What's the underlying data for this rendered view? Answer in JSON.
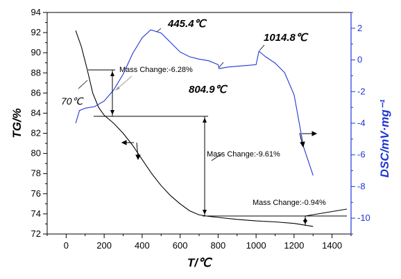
{
  "chart_data": {
    "type": "line",
    "xlabel": "T/℃",
    "ylabel_left": "TG/%",
    "ylabel_right": "DSC/mV·mg⁻¹",
    "xlim": [
      -100,
      1500
    ],
    "ylim_left": [
      72,
      94
    ],
    "ylim_right": [
      -11,
      3
    ],
    "x_ticks": [
      0,
      200,
      400,
      600,
      800,
      1000,
      1200,
      1400
    ],
    "y_ticks_left": [
      72,
      74,
      76,
      78,
      80,
      82,
      84,
      86,
      88,
      90,
      92,
      94
    ],
    "y_ticks_right": [
      -10,
      -8,
      -6,
      -4,
      -2,
      0,
      2
    ],
    "grid": false,
    "legend": "none",
    "series": [
      {
        "axis": "left",
        "color": "#000000",
        "x": [
          50,
          80,
          110,
          140,
          170,
          200,
          250,
          300,
          350,
          400,
          450,
          500,
          550,
          600,
          650,
          700,
          750,
          800,
          900,
          1000,
          1100,
          1200,
          1300
        ],
        "y": [
          92.2,
          90.6,
          88.4,
          86.0,
          84.6,
          83.8,
          83.0,
          82.0,
          80.8,
          79.4,
          78.0,
          76.8,
          75.8,
          75.0,
          74.3,
          73.9,
          73.75,
          73.65,
          73.45,
          73.3,
          73.2,
          73.05,
          72.75
        ]
      },
      {
        "axis": "right",
        "color": "#1f35d6",
        "x": [
          50,
          70,
          100,
          150,
          200,
          250,
          300,
          350,
          400,
          445.4,
          500,
          550,
          600,
          650,
          700,
          750,
          800,
          804.9,
          850,
          900,
          950,
          1000,
          1014.8,
          1050,
          1100,
          1150,
          1200,
          1250,
          1300
        ],
        "y": [
          -4.0,
          -3.2,
          -3.05,
          -2.95,
          -2.6,
          -1.9,
          -0.9,
          0.4,
          1.4,
          1.9,
          1.7,
          1.1,
          0.5,
          0.2,
          0.05,
          -0.05,
          -0.3,
          -0.55,
          -0.45,
          -0.4,
          -0.35,
          -0.3,
          0.55,
          0.2,
          -0.2,
          -0.8,
          -2.2,
          -5.5,
          -7.3
        ]
      }
    ],
    "annotations": {
      "peak1": "445.4℃",
      "peak2": "804.9℃",
      "peak3": "1014.8℃",
      "start": "70℃",
      "mass1": "Mass Change:-6.28%",
      "mass2": "Mass Change:-9.61%",
      "mass3": "Mass Change:-0.94%"
    }
  }
}
